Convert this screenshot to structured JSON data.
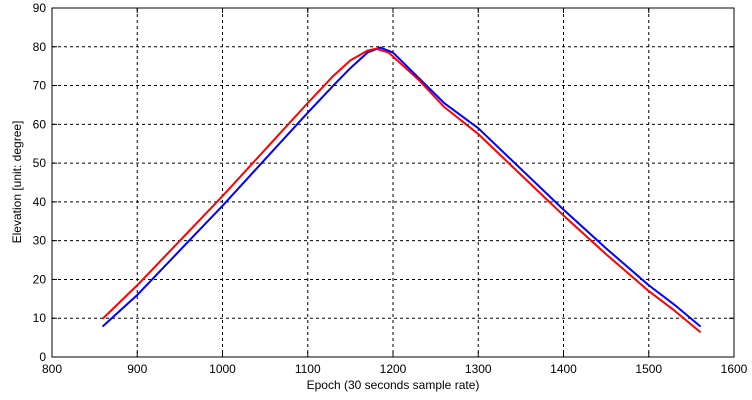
{
  "chart_data": {
    "type": "line",
    "title": "",
    "xlabel": "Epoch (30 seconds sample rate)",
    "ylabel": "Elevation [unit: degree]",
    "xlim": [
      800,
      1600
    ],
    "ylim": [
      0,
      90
    ],
    "x_ticks": [
      "800",
      "900",
      "1000",
      "1100",
      "1200",
      "1300",
      "1400",
      "1500",
      "1600"
    ],
    "y_ticks": [
      "0",
      "10",
      "20",
      "30",
      "40",
      "50",
      "60",
      "70",
      "80",
      "90"
    ],
    "grid": true,
    "grid_style": "dashed",
    "legend": "none",
    "series": [
      {
        "color": "#0000ff",
        "x": [
          860,
          900,
          950,
          1000,
          1050,
          1100,
          1130,
          1150,
          1170,
          1185,
          1200,
          1230,
          1260,
          1300,
          1350,
          1400,
          1450,
          1500,
          1530,
          1560
        ],
        "y": [
          8,
          16,
          27.5,
          39,
          51,
          63,
          70,
          74.5,
          78.5,
          79.8,
          78.5,
          72,
          65.5,
          59,
          48.5,
          38,
          28,
          18.5,
          13.5,
          8
        ]
      },
      {
        "color": "#ff0000",
        "x": [
          860,
          900,
          950,
          1000,
          1050,
          1100,
          1130,
          1150,
          1170,
          1180,
          1195,
          1230,
          1260,
          1300,
          1350,
          1400,
          1450,
          1500,
          1530,
          1560
        ],
        "y": [
          10,
          18.5,
          30,
          41.5,
          53.5,
          65.5,
          72.5,
          76.5,
          79,
          79.5,
          78.5,
          71.5,
          64.5,
          57.5,
          47,
          36.5,
          26.5,
          17,
          12,
          6.5
        ]
      }
    ]
  }
}
